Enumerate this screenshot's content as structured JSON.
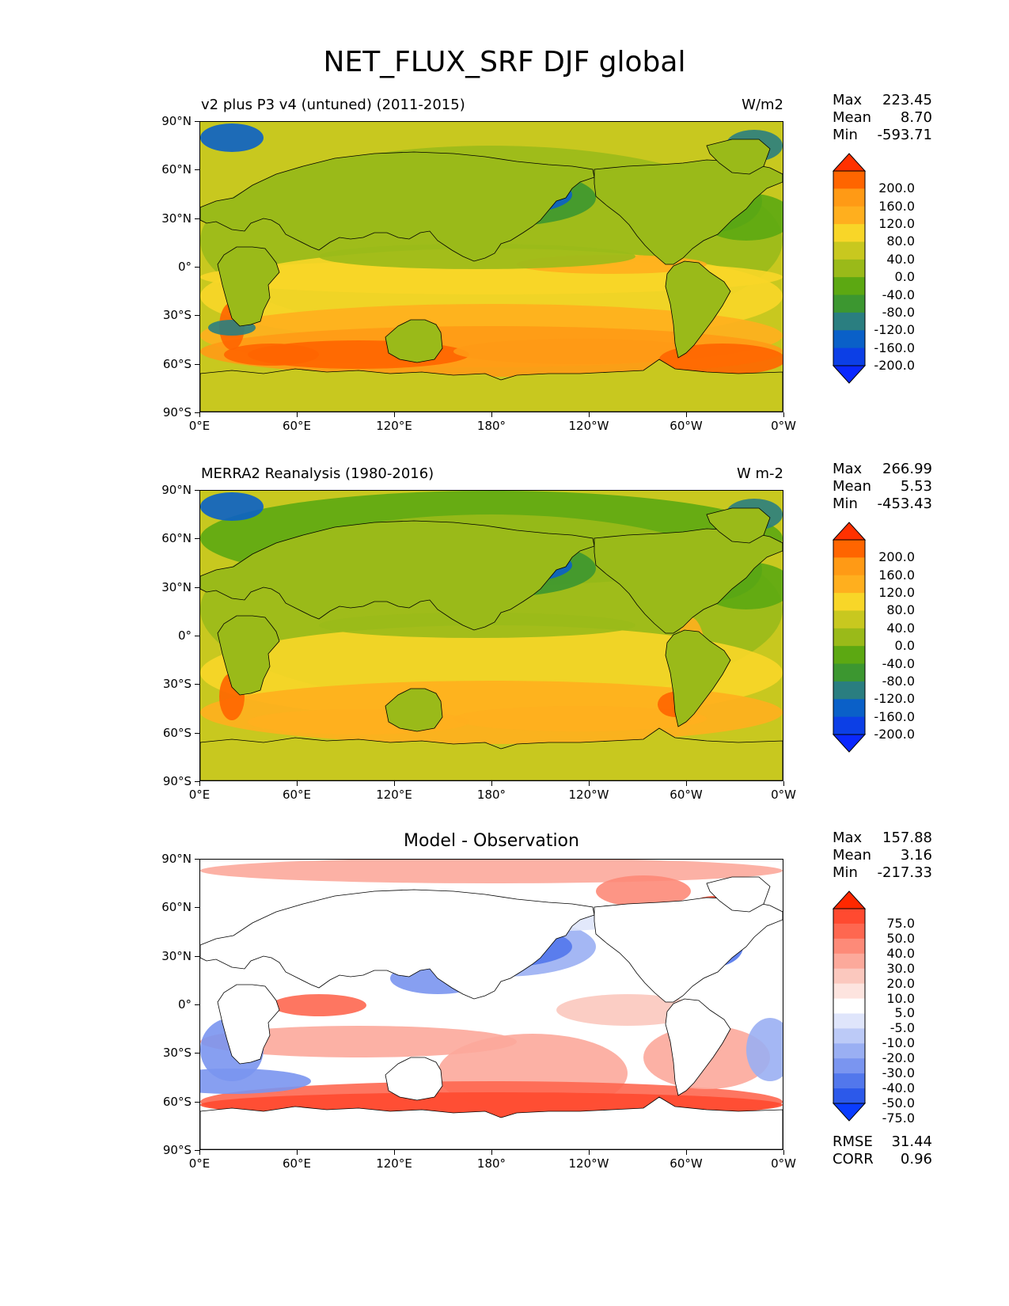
{
  "title": "NET_FLUX_SRF DJF global",
  "lat_ticks": [
    "90°N",
    "60°N",
    "30°N",
    "0°",
    "30°S",
    "60°S",
    "90°S"
  ],
  "lon_ticks": [
    "0°E",
    "60°E",
    "120°E",
    "180°",
    "120°W",
    "60°W",
    "0°W"
  ],
  "panels": [
    {
      "left_title": "v2 plus P3 v4 (untuned) (2011-2015)",
      "right_title": "W/m2",
      "center_title": "",
      "stats": {
        "max_label": "Max",
        "max": "223.45",
        "mean_label": "Mean",
        "mean": "8.70",
        "min_label": "Min",
        "min": "-593.71"
      },
      "colorbar": {
        "labels": [
          "200.0",
          "160.0",
          "120.0",
          "80.0",
          "40.0",
          "0.0",
          "-40.0",
          "-80.0",
          "-120.0",
          "-160.0",
          "-200.0"
        ],
        "colors": [
          "#ff3100",
          "#ff6500",
          "#ff9a15",
          "#ffaf1e",
          "#f8d628",
          "#c8c81f",
          "#9aba19",
          "#5ca812",
          "#3c9730",
          "#2a7e80",
          "#0a60c8",
          "#0c3fe6",
          "#0a28ff"
        ]
      }
    },
    {
      "left_title": "MERRA2 Reanalysis (1980-2016)",
      "right_title": "W m-2",
      "center_title": "",
      "stats": {
        "max_label": "Max",
        "max": "266.99",
        "mean_label": "Mean",
        "mean": "5.53",
        "min_label": "Min",
        "min": "-453.43"
      },
      "colorbar": {
        "labels": [
          "200.0",
          "160.0",
          "120.0",
          "80.0",
          "40.0",
          "0.0",
          "-40.0",
          "-80.0",
          "-120.0",
          "-160.0",
          "-200.0"
        ],
        "colors": [
          "#ff3100",
          "#ff6500",
          "#ff9a15",
          "#ffaf1e",
          "#f8d628",
          "#c8c81f",
          "#9aba19",
          "#5ca812",
          "#3c9730",
          "#2a7e80",
          "#0a60c8",
          "#0c3fe6",
          "#0a28ff"
        ]
      }
    },
    {
      "left_title": "",
      "right_title": "",
      "center_title": "Model - Observation",
      "stats": {
        "max_label": "Max",
        "max": "157.88",
        "mean_label": "Mean",
        "mean": "3.16",
        "min_label": "Min",
        "min": "-217.33"
      },
      "extra": {
        "rmse_label": "RMSE",
        "rmse": "31.44",
        "corr_label": "CORR",
        "corr": "0.96"
      },
      "colorbar": {
        "labels": [
          "75.0",
          "50.0",
          "40.0",
          "30.0",
          "20.0",
          "10.0",
          "5.0",
          "-5.0",
          "-10.0",
          "-20.0",
          "-30.0",
          "-40.0",
          "-50.0",
          "-75.0"
        ],
        "colors": [
          "#ff2800",
          "#ff4a30",
          "#fe6750",
          "#fd8a78",
          "#fca99b",
          "#fbc8be",
          "#fde4df",
          "#ffffff",
          "#dfe5fb",
          "#bccaf7",
          "#9aaff3",
          "#7a95f0",
          "#5277ec",
          "#2c59ea",
          "#0a3cff"
        ]
      }
    }
  ],
  "chart_data": [
    {
      "type": "heatmap",
      "title": "v2 plus P3 v4 (untuned) (2011-2015)",
      "units": "W/m2",
      "variable": "NET_FLUX_SRF",
      "season": "DJF",
      "x_ticks": [
        "0°E",
        "60°E",
        "120°E",
        "180°",
        "120°W",
        "60°W",
        "0°W"
      ],
      "y_ticks": [
        "90°N",
        "60°N",
        "30°N",
        "0°",
        "30°S",
        "60°S",
        "90°S"
      ],
      "xlim": [
        0,
        360
      ],
      "ylim": [
        -90,
        90
      ],
      "levels": [
        -200,
        -160,
        -120,
        -80,
        -40,
        0,
        40,
        80,
        120,
        160,
        200
      ],
      "max": 223.45,
      "mean": 8.7,
      "min": -593.71
    },
    {
      "type": "heatmap",
      "title": "MERRA2 Reanalysis (1980-2016)",
      "units": "W m-2",
      "variable": "NET_FLUX_SRF",
      "season": "DJF",
      "x_ticks": [
        "0°E",
        "60°E",
        "120°E",
        "180°",
        "120°W",
        "60°W",
        "0°W"
      ],
      "y_ticks": [
        "90°N",
        "60°N",
        "30°N",
        "0°",
        "30°S",
        "60°S",
        "90°S"
      ],
      "xlim": [
        0,
        360
      ],
      "ylim": [
        -90,
        90
      ],
      "levels": [
        -200,
        -160,
        -120,
        -80,
        -40,
        0,
        40,
        80,
        120,
        160,
        200
      ],
      "max": 266.99,
      "mean": 5.53,
      "min": -453.43
    },
    {
      "type": "heatmap",
      "title": "Model - Observation",
      "x_ticks": [
        "0°E",
        "60°E",
        "120°E",
        "180°",
        "120°W",
        "60°W",
        "0°W"
      ],
      "y_ticks": [
        "90°N",
        "60°N",
        "30°N",
        "0°",
        "30°S",
        "60°S",
        "90°S"
      ],
      "xlim": [
        0,
        360
      ],
      "ylim": [
        -90,
        90
      ],
      "levels": [
        -75,
        -50,
        -40,
        -30,
        -20,
        -10,
        -5,
        5,
        10,
        20,
        30,
        40,
        50,
        75
      ],
      "max": 157.88,
      "mean": 3.16,
      "min": -217.33,
      "rmse": 31.44,
      "corr": 0.96
    }
  ]
}
